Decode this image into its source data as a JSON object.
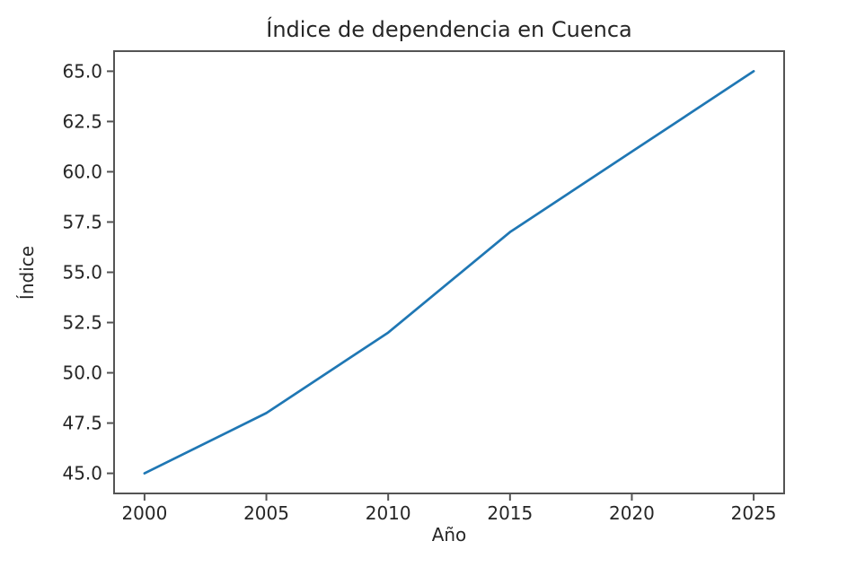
{
  "chart_data": {
    "type": "line",
    "title": "Índice de dependencia en Cuenca",
    "xlabel": "Año",
    "ylabel": "Índice",
    "x": [
      2000,
      2005,
      2010,
      2015,
      2020,
      2025
    ],
    "values": [
      45,
      48,
      52,
      57,
      61,
      65
    ],
    "x_tick_values": [
      2000,
      2005,
      2010,
      2015,
      2020,
      2025
    ],
    "x_tick_labels": [
      "2000",
      "2005",
      "2010",
      "2015",
      "2020",
      "2025"
    ],
    "y_tick_values": [
      45,
      47.5,
      50,
      52.5,
      55,
      57.5,
      60,
      62.5,
      65
    ],
    "y_tick_labels": [
      "45.0",
      "47.5",
      "50.0",
      "52.5",
      "55.0",
      "57.5",
      "60.0",
      "62.5",
      "65.0"
    ],
    "xlim": [
      1998.75,
      2026.25
    ],
    "ylim": [
      44,
      66
    ],
    "line_color": "#1f77b4",
    "axis_color": "#545454",
    "text_color": "#262626",
    "grid": false,
    "legend_position": "none"
  }
}
